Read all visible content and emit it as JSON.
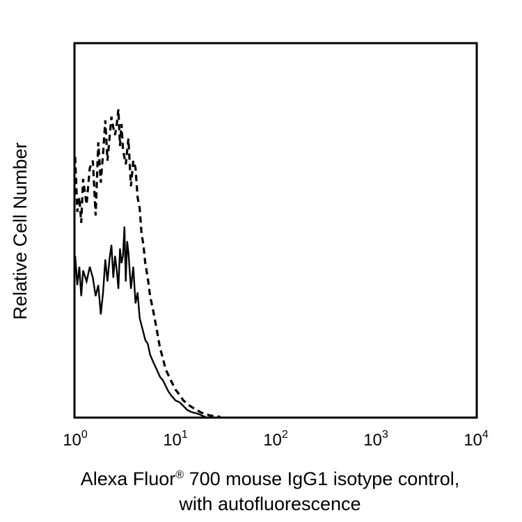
{
  "chart_data": {
    "type": "line",
    "xscale": "log",
    "xlim": [
      1,
      10000
    ],
    "ylim": [
      0,
      1
    ],
    "grid": false,
    "legend": "none",
    "xlabel": {
      "main": "Alexa Fluor",
      "mark": "®",
      "rest": " 700 mouse IgG1 isotype control,",
      "line2": "with autofluorescence"
    },
    "ylabel": "Relative Cell Number",
    "ticks": [
      {
        "base": "10",
        "exp": "0",
        "value": 1
      },
      {
        "base": "10",
        "exp": "1",
        "value": 10
      },
      {
        "base": "10",
        "exp": "2",
        "value": 100
      },
      {
        "base": "10",
        "exp": "3",
        "value": 1000
      },
      {
        "base": "10",
        "exp": "4",
        "value": 10000
      }
    ],
    "series": [
      {
        "style": "solid",
        "color": "#000000",
        "x": [
          1.0,
          1.05,
          1.1,
          1.15,
          1.2,
          1.3,
          1.4,
          1.5,
          1.6,
          1.7,
          1.8,
          1.9,
          2.0,
          2.1,
          2.2,
          2.3,
          2.4,
          2.5,
          2.6,
          2.7,
          2.8,
          2.9,
          3.0,
          3.1,
          3.2,
          3.3,
          3.4,
          3.6,
          3.8,
          4.0,
          4.2,
          4.4,
          4.6,
          4.8,
          5.0,
          5.3,
          5.6,
          6.0,
          6.5,
          7.0,
          7.5,
          8.0,
          8.5,
          9.0,
          10,
          11,
          12,
          13,
          14,
          15,
          16,
          17,
          18,
          19,
          20
        ],
        "y": [
          0.44,
          0.36,
          0.41,
          0.33,
          0.4,
          0.37,
          0.41,
          0.38,
          0.33,
          0.36,
          0.28,
          0.34,
          0.43,
          0.37,
          0.43,
          0.47,
          0.38,
          0.44,
          0.4,
          0.35,
          0.46,
          0.42,
          0.44,
          0.52,
          0.37,
          0.48,
          0.45,
          0.35,
          0.41,
          0.31,
          0.34,
          0.27,
          0.25,
          0.23,
          0.21,
          0.2,
          0.17,
          0.15,
          0.13,
          0.11,
          0.1,
          0.085,
          0.07,
          0.06,
          0.045,
          0.04,
          0.03,
          0.02,
          0.015,
          0.012,
          0.01,
          0.008,
          0.005,
          0.002,
          0.0
        ]
      },
      {
        "style": "dashed",
        "color": "#000000",
        "x": [
          1.0,
          1.05,
          1.1,
          1.15,
          1.2,
          1.3,
          1.4,
          1.5,
          1.6,
          1.7,
          1.8,
          1.9,
          2.0,
          2.1,
          2.2,
          2.3,
          2.4,
          2.5,
          2.6,
          2.7,
          2.8,
          2.9,
          3.0,
          3.2,
          3.4,
          3.6,
          3.8,
          4.0,
          4.2,
          4.4,
          4.6,
          4.8,
          5.0,
          5.3,
          5.6,
          6.0,
          6.5,
          7.0,
          7.5,
          8.0,
          9.0,
          10,
          11,
          12,
          14,
          16,
          18,
          20,
          22,
          25,
          28
        ],
        "y": [
          0.71,
          0.56,
          0.6,
          0.53,
          0.65,
          0.58,
          0.68,
          0.7,
          0.55,
          0.75,
          0.64,
          0.72,
          0.81,
          0.7,
          0.76,
          0.82,
          0.79,
          0.77,
          0.8,
          0.84,
          0.74,
          0.8,
          0.73,
          0.69,
          0.76,
          0.63,
          0.7,
          0.68,
          0.6,
          0.57,
          0.5,
          0.47,
          0.42,
          0.38,
          0.33,
          0.29,
          0.24,
          0.19,
          0.16,
          0.13,
          0.1,
          0.075,
          0.06,
          0.045,
          0.03,
          0.02,
          0.012,
          0.008,
          0.004,
          0.002,
          0.0
        ]
      }
    ]
  }
}
